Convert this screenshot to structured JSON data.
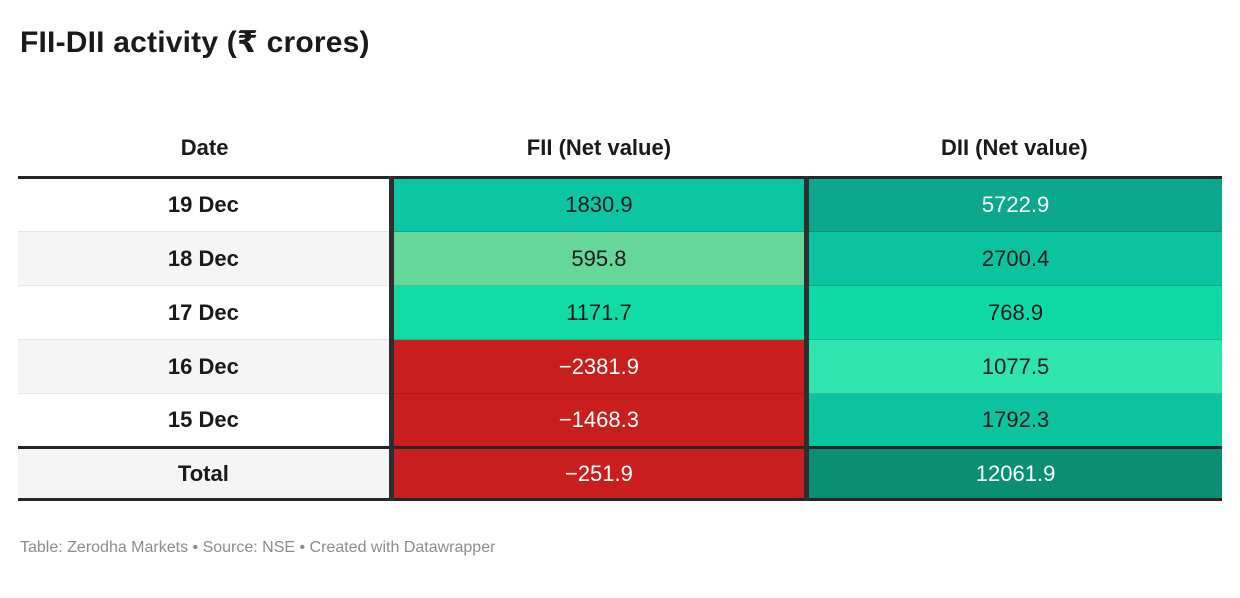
{
  "title": "FII-DII activity (₹ crores)",
  "footer_note": "Table: Zerodha Markets • Source: NSE • Created with Datawrapper",
  "colors": {
    "positive_dark_teal": "#0a8f73",
    "teal": "#0ba88d",
    "medium_green": "#0cc3a0",
    "bright_green": "#12dca6",
    "mint": "#2ee5af",
    "soft_green": "#65d79a",
    "negative_red": "#c91e1e",
    "dark_text": "#1a1a1a",
    "light_text": "#ffffff",
    "thick_border": "#262626",
    "alt_row_bg": "#f5f5f5"
  },
  "table": {
    "headers": {
      "date": "Date",
      "fii": "FII (Net value)",
      "dii": "DII (Net value)"
    },
    "rows": [
      {
        "date": "19 Dec",
        "fii": "1830.9",
        "dii": "5722.9",
        "date_bg": "#ffffff",
        "fii_bg": "#0cc5a3",
        "fii_fg": "#1a1a1a",
        "dii_bg": "#0ba88d",
        "dii_fg": "#ffffff"
      },
      {
        "date": "18 Dec",
        "fii": "595.8",
        "dii": "2700.4",
        "date_bg": "#f5f5f5",
        "fii_bg": "#65d79a",
        "fii_fg": "#1a1a1a",
        "dii_bg": "#0cc3a0",
        "dii_fg": "#1a1a1a"
      },
      {
        "date": "17 Dec",
        "fii": "1171.7",
        "dii": "768.9",
        "date_bg": "#ffffff",
        "fii_bg": "#12dca6",
        "fii_fg": "#1a1a1a",
        "dii_bg": "#0edaa6",
        "dii_fg": "#1a1a1a"
      },
      {
        "date": "16 Dec",
        "fii": "−2381.9",
        "dii": "1077.5",
        "date_bg": "#f5f5f5",
        "fii_bg": "#c91e1e",
        "fii_fg": "#ffffff",
        "dii_bg": "#2ee5af",
        "dii_fg": "#1a1a1a"
      },
      {
        "date": "15 Dec",
        "fii": "−1468.3",
        "dii": "1792.3",
        "date_bg": "#ffffff",
        "fii_bg": "#c91e1e",
        "fii_fg": "#ffffff",
        "dii_bg": "#0cc3a0",
        "dii_fg": "#1a1a1a"
      },
      {
        "date": "Total",
        "fii": "−251.9",
        "dii": "12061.9",
        "date_bg": "#f5f5f5",
        "fii_bg": "#c91e1e",
        "fii_fg": "#ffffff",
        "dii_bg": "#0a8f73",
        "dii_fg": "#ffffff"
      }
    ]
  },
  "chart_data": {
    "type": "table",
    "title": "FII-DII activity (₹ crores)",
    "columns": [
      "Date",
      "FII (Net value)",
      "DII (Net value)"
    ],
    "rows": [
      [
        "19 Dec",
        1830.9,
        5722.9
      ],
      [
        "18 Dec",
        595.8,
        2700.4
      ],
      [
        "17 Dec",
        1171.7,
        768.9
      ],
      [
        "16 Dec",
        -2381.9,
        1077.5
      ],
      [
        "15 Dec",
        -1468.3,
        1792.3
      ],
      [
        "Total",
        -251.9,
        12061.9
      ]
    ],
    "notes": "Table: Zerodha Markets • Source: NSE • Created with Datawrapper",
    "layout_hints": {
      "value_cell_shading": "diverging green (positive) to red (negative), intensity scaled by magnitude",
      "grid": "thick dark rules below header, above and below total row; dark vertical rules between columns"
    }
  }
}
